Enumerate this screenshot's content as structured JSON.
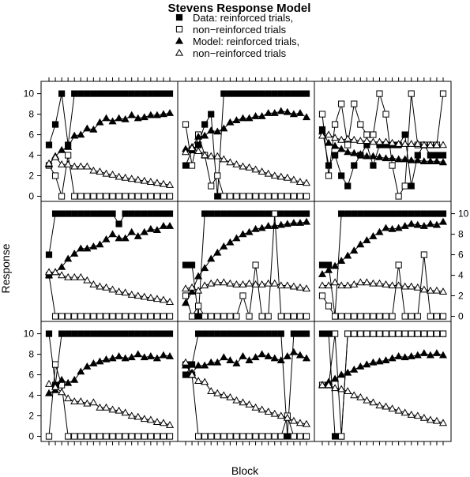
{
  "chart_data": {
    "type": "line",
    "title": "Stevens Response Model",
    "xlabel": "Block",
    "ylabel": "Response",
    "ylim": [
      -0.5,
      11.2
    ],
    "yticks": [
      0,
      2,
      4,
      6,
      8,
      10
    ],
    "grid": false,
    "legend_position": "top-center",
    "layout": "3x3 panels (lattice)",
    "legend": [
      {
        "label": "Data: reinforced trials,",
        "marker": "filled-square"
      },
      {
        "label": "non−reinforced trials",
        "marker": "open-square"
      },
      {
        "label": "Model: reinforced trials,",
        "marker": "filled-triangle"
      },
      {
        "label": "non−reinforced trials",
        "marker": "open-triangle"
      }
    ],
    "x": [
      1,
      2,
      3,
      4,
      5,
      6,
      7,
      8,
      9,
      10,
      11,
      12,
      13,
      14,
      15,
      16,
      17,
      18,
      19,
      20
    ],
    "panels": [
      {
        "series": [
          {
            "marker": "filled-square",
            "values": [
              5,
              7,
              10,
              5,
              10,
              10,
              10,
              10,
              10,
              10,
              10,
              10,
              10,
              10,
              10,
              10,
              10,
              10,
              10,
              10
            ]
          },
          {
            "marker": "open-square",
            "values": [
              3,
              2,
              0,
              4,
              0,
              0,
              0,
              0,
              0,
              0,
              0,
              0,
              0,
              0,
              0,
              0,
              0,
              0,
              0,
              0
            ]
          },
          {
            "marker": "filled-triangle",
            "values": [
              3.1,
              3.9,
              4.5,
              4.8,
              5.9,
              6.0,
              6.6,
              6.5,
              7.2,
              7.6,
              7.3,
              7.6,
              7.5,
              7.9,
              7.6,
              7.7,
              7.9,
              7.9,
              8.0,
              8.1
            ]
          },
          {
            "marker": "open-triangle",
            "values": [
              3.2,
              3.8,
              3.1,
              3.1,
              2.9,
              2.9,
              2.9,
              2.5,
              2.4,
              2.2,
              2.1,
              1.9,
              1.8,
              1.7,
              1.6,
              1.5,
              1.4,
              1.3,
              1.2,
              1.1
            ]
          }
        ]
      },
      {
        "series": [
          {
            "marker": "filled-square",
            "values": [
              3,
              4.5,
              5,
              7,
              8,
              0,
              10,
              10,
              10,
              10,
              10,
              10,
              10,
              10,
              10,
              10,
              10,
              10,
              10,
              10
            ]
          },
          {
            "marker": "open-square",
            "values": [
              7,
              3,
              6,
              4,
              1,
              2,
              0,
              0,
              0,
              0,
              0,
              0,
              0,
              0,
              0,
              0,
              0,
              0,
              0,
              0
            ]
          },
          {
            "marker": "filled-triangle",
            "values": [
              4.6,
              4.8,
              5.8,
              5.9,
              6.4,
              6.3,
              6.6,
              7.2,
              7.4,
              7.6,
              7.6,
              7.8,
              7.8,
              8.1,
              8.1,
              8.3,
              8.2,
              8.0,
              8.1,
              7.7
            ]
          },
          {
            "marker": "open-triangle",
            "values": [
              4.3,
              4.7,
              4.4,
              4.0,
              3.9,
              3.9,
              3.6,
              3.3,
              3.1,
              2.9,
              2.8,
              2.6,
              2.4,
              2.2,
              2.0,
              1.9,
              1.8,
              1.6,
              1.4,
              1.3
            ]
          }
        ]
      },
      {
        "series": [
          {
            "marker": "filled-square",
            "values": [
              6.5,
              3,
              4,
              2,
              1,
              3,
              4,
              5,
              3,
              5,
              5,
              5,
              5,
              6,
              1,
              4,
              5,
              4,
              4,
              4
            ]
          },
          {
            "marker": "open-square",
            "values": [
              8,
              2,
              7,
              9,
              5,
              9,
              7,
              6,
              6,
              10,
              8,
              3,
              0,
              1,
              10,
              5,
              5,
              5,
              5,
              10
            ]
          },
          {
            "marker": "filled-triangle",
            "values": [
              6.3,
              5.2,
              4.9,
              4.6,
              4.3,
              4.2,
              4.1,
              3.9,
              3.9,
              3.8,
              3.7,
              3.7,
              3.6,
              3.6,
              3.5,
              3.5,
              3.4,
              3.4,
              3.4,
              3.3
            ]
          },
          {
            "marker": "open-triangle",
            "values": [
              5.9,
              6.0,
              5.7,
              5.5,
              5.6,
              5.5,
              5.4,
              5.4,
              5.3,
              5.3,
              5.3,
              5.2,
              5.1,
              5.1,
              5.1,
              5.1,
              5.0,
              5.0,
              5.0,
              5.0
            ]
          }
        ]
      },
      {
        "series": [
          {
            "marker": "filled-square",
            "values": [
              6,
              10,
              10,
              10,
              10,
              10,
              10,
              10,
              10,
              10,
              10,
              9,
              10,
              10,
              10,
              10,
              10,
              10,
              10,
              10
            ]
          },
          {
            "marker": "open-square",
            "values": [
              4,
              0,
              0,
              0,
              0,
              0,
              0,
              0,
              0,
              0,
              0,
              0,
              0,
              0,
              0,
              0,
              0,
              0,
              0,
              0
            ]
          },
          {
            "marker": "filled-triangle",
            "values": [
              4.0,
              4.3,
              4.8,
              5.6,
              6.1,
              6.6,
              6.6,
              6.8,
              7.0,
              7.5,
              8.0,
              7.6,
              7.6,
              8.2,
              7.8,
              8.2,
              8.5,
              8.4,
              8.8,
              8.8
            ]
          },
          {
            "marker": "open-triangle",
            "values": [
              4.3,
              4.3,
              4.0,
              3.8,
              3.8,
              3.8,
              3.5,
              3.1,
              2.9,
              2.8,
              2.6,
              2.4,
              2.3,
              2.1,
              2.0,
              1.9,
              1.8,
              1.7,
              1.6,
              1.4
            ]
          }
        ]
      },
      {
        "series": [
          {
            "marker": "filled-square",
            "values": [
              5,
              5,
              0,
              10,
              10,
              10,
              10,
              10,
              10,
              10,
              10,
              10,
              10,
              10,
              10,
              10,
              10,
              10,
              10,
              10
            ]
          },
          {
            "marker": "open-square",
            "values": [
              2,
              0,
              1,
              0,
              0,
              0,
              0,
              0,
              0,
              2,
              0,
              5,
              0,
              0,
              10,
              0,
              0,
              0,
              0,
              0
            ]
          },
          {
            "marker": "filled-triangle",
            "values": [
              1.3,
              2.4,
              3.9,
              4.7,
              5.6,
              6.2,
              6.8,
              7.2,
              7.6,
              8.0,
              8.2,
              8.5,
              8.6,
              8.8,
              8.8,
              8.9,
              9.0,
              9.1,
              9.1,
              9.2
            ]
          },
          {
            "marker": "open-triangle",
            "values": [
              2.7,
              2.8,
              2.5,
              3.0,
              3.2,
              3.3,
              3.3,
              3.2,
              3.1,
              3.1,
              3.2,
              3.1,
              3.1,
              3.2,
              3.2,
              3.0,
              3.0,
              2.9,
              2.8,
              2.7
            ]
          }
        ]
      },
      {
        "series": [
          {
            "marker": "filled-square",
            "values": [
              5,
              5,
              0,
              10,
              10,
              10,
              10,
              10,
              10,
              10,
              10,
              10,
              10,
              10,
              10,
              10,
              10,
              10,
              10,
              10
            ]
          },
          {
            "marker": "open-square",
            "values": [
              2,
              1,
              0,
              0,
              0,
              0,
              0,
              0,
              0,
              0,
              0,
              0,
              5,
              0,
              0,
              0,
              6,
              0,
              0,
              0
            ]
          },
          {
            "marker": "filled-triangle",
            "values": [
              4.1,
              4.5,
              4.9,
              5.4,
              5.9,
              6.4,
              7.0,
              7.4,
              7.8,
              8.2,
              8.6,
              8.5,
              8.6,
              8.8,
              9.0,
              8.9,
              8.8,
              9.0,
              8.9,
              9.2
            ]
          },
          {
            "marker": "open-triangle",
            "values": [
              3.0,
              3.0,
              3.3,
              3.0,
              3.0,
              3.1,
              3.3,
              3.3,
              3.2,
              3.2,
              3.1,
              3.0,
              3.0,
              2.9,
              2.9,
              2.8,
              2.6,
              2.5,
              2.5,
              2.4
            ]
          }
        ]
      },
      {
        "series": [
          {
            "marker": "filled-square",
            "values": [
              10,
              5,
              10,
              10,
              10,
              10,
              10,
              10,
              10,
              10,
              10,
              10,
              10,
              10,
              10,
              10,
              10,
              10,
              10,
              10
            ]
          },
          {
            "marker": "open-square",
            "values": [
              0,
              7,
              5,
              0,
              0,
              0,
              0,
              0,
              0,
              0,
              0,
              0,
              0,
              0,
              0,
              0,
              0,
              0,
              0,
              0
            ]
          },
          {
            "marker": "filled-triangle",
            "values": [
              4.2,
              4.5,
              5.5,
              5.2,
              5.5,
              6.3,
              6.8,
              7.1,
              7.3,
              7.5,
              7.6,
              7.8,
              7.6,
              7.7,
              8.0,
              7.7,
              7.8,
              7.6,
              7.9,
              7.8
            ]
          },
          {
            "marker": "open-triangle",
            "values": [
              5.1,
              4.8,
              4.3,
              3.7,
              3.4,
              3.4,
              3.2,
              3.3,
              2.8,
              2.8,
              2.6,
              2.5,
              2.3,
              2.0,
              1.9,
              1.7,
              1.6,
              1.4,
              1.3,
              1.1
            ]
          }
        ]
      },
      {
        "series": [
          {
            "marker": "filled-square",
            "values": [
              6,
              7,
              10,
              10,
              10,
              10,
              10,
              10,
              10,
              10,
              10,
              10,
              10,
              10,
              10,
              10,
              0,
              10,
              10,
              10
            ]
          },
          {
            "marker": "open-square",
            "values": [
              7,
              6,
              0,
              0,
              0,
              0,
              0,
              0,
              0,
              0,
              0,
              0,
              0,
              0,
              0,
              0,
              2,
              0,
              0,
              0
            ]
          },
          {
            "marker": "filled-triangle",
            "values": [
              6.9,
              6.2,
              6.9,
              6.9,
              7.2,
              7.2,
              7.7,
              7.4,
              7.1,
              7.8,
              7.4,
              7.7,
              8.0,
              7.8,
              7.6,
              7.4,
              7.8,
              8.2,
              7.9,
              7.6
            ]
          },
          {
            "marker": "open-triangle",
            "values": [
              7.2,
              6.0,
              5.4,
              5.3,
              4.4,
              4.2,
              4.0,
              3.8,
              3.5,
              3.3,
              3.1,
              2.8,
              2.6,
              2.4,
              2.2,
              2.0,
              1.8,
              1.5,
              1.3,
              1.2
            ]
          }
        ]
      },
      {
        "series": [
          {
            "marker": "filled-square",
            "values": [
              10,
              10,
              0,
              0,
              10,
              10,
              10,
              10,
              10,
              10,
              10,
              10,
              10,
              10,
              10,
              10,
              10,
              10,
              10,
              10
            ]
          },
          {
            "marker": "open-square",
            "values": [
              5,
              5,
              10,
              0,
              10,
              10,
              10,
              10,
              10,
              10,
              10,
              10,
              10,
              10,
              10,
              10,
              10,
              10,
              10,
              10
            ]
          },
          {
            "marker": "filled-triangle",
            "values": [
              5.0,
              5.3,
              5.6,
              6.0,
              6.2,
              6.5,
              6.8,
              7.0,
              7.2,
              7.3,
              7.4,
              7.6,
              7.8,
              7.7,
              7.8,
              7.9,
              8.1,
              7.9,
              8.1,
              7.9
            ]
          },
          {
            "marker": "open-triangle",
            "values": [
              5.0,
              5.0,
              4.7,
              4.6,
              4.4,
              4.0,
              3.8,
              3.5,
              3.3,
              3.0,
              2.9,
              2.7,
              2.5,
              2.3,
              2.1,
              2.0,
              1.8,
              1.6,
              1.5,
              1.3
            ]
          }
        ]
      }
    ]
  }
}
